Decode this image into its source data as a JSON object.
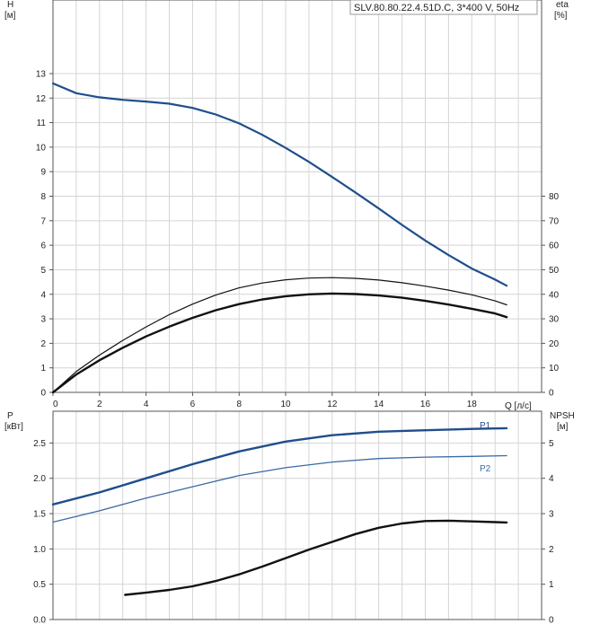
{
  "pump_label": "SLV.80.80.22.4.51D.C, 3*400 V, 50Hz",
  "colors": {
    "blue": "#1f4e8c",
    "blue_light": "#3a6aa5",
    "black": "#111111",
    "grid": "#d4d4d4"
  },
  "chart_data": [
    {
      "type": "line",
      "panel": "head-efficiency",
      "x_ticks": [
        "0",
        "2",
        "4",
        "6",
        "8",
        "10",
        "12",
        "14",
        "16",
        "18"
      ],
      "xlabel": "Q [л/с]",
      "xlim": [
        0,
        21
      ],
      "y_left": {
        "label_top": "H",
        "label_unit": "[м]",
        "ticks": [
          "0",
          "1",
          "2",
          "3",
          "4",
          "5",
          "6",
          "7",
          "8",
          "9",
          "10",
          "11",
          "12",
          "13"
        ],
        "lim": [
          0,
          16
        ]
      },
      "y_right": {
        "label_top": "eta",
        "label_unit": "[%]",
        "ticks": [
          "0",
          "10",
          "20",
          "30",
          "40",
          "50",
          "60",
          "70",
          "80"
        ],
        "lim": [
          0,
          160
        ]
      },
      "grid": true,
      "series": [
        {
          "axis": "left",
          "color": "#1f4e8c",
          "width": 2.2,
          "x": [
            0,
            1,
            2,
            3,
            4,
            5,
            6,
            7,
            8,
            9,
            10,
            11,
            12,
            13,
            14,
            15,
            16,
            17,
            18,
            19,
            19.5
          ],
          "y": [
            12.6,
            12.2,
            12.03,
            11.93,
            11.86,
            11.77,
            11.6,
            11.33,
            10.97,
            10.5,
            9.97,
            9.4,
            8.78,
            8.15,
            7.5,
            6.83,
            6.19,
            5.6,
            5.05,
            4.6,
            4.35
          ]
        },
        {
          "axis": "right",
          "color": "#111111",
          "width": 1.2,
          "x": [
            0,
            1,
            2,
            3,
            4,
            5,
            6,
            7,
            8,
            9,
            10,
            11,
            12,
            13,
            14,
            15,
            16,
            17,
            18,
            19,
            19.5
          ],
          "y": [
            0,
            8.5,
            15.2,
            21.2,
            26.7,
            31.7,
            36,
            39.7,
            42.6,
            44.6,
            45.9,
            46.6,
            46.8,
            46.5,
            45.8,
            44.7,
            43.3,
            41.7,
            39.8,
            37.3,
            35.7
          ]
        },
        {
          "axis": "right",
          "color": "#111111",
          "width": 2.4,
          "x": [
            0,
            1,
            2,
            3,
            4,
            5,
            6,
            7,
            8,
            9,
            10,
            11,
            12,
            13,
            14,
            15,
            16,
            17,
            18,
            19,
            19.5
          ],
          "y": [
            0,
            7.3,
            13.1,
            18.2,
            22.8,
            26.8,
            30.4,
            33.5,
            36,
            37.9,
            39.2,
            40,
            40.3,
            40.1,
            39.5,
            38.6,
            37.3,
            35.8,
            34.1,
            32.2,
            30.7
          ]
        }
      ]
    },
    {
      "type": "line",
      "panel": "power-npsh",
      "xlim": [
        0,
        21
      ],
      "y_left": {
        "label_top": "P",
        "label_unit": "[кВт]",
        "ticks": [
          "0.0",
          "0.5",
          "1.0",
          "1.5",
          "2.0",
          "2.5"
        ],
        "values": [
          0,
          0.5,
          1.0,
          1.5,
          2.0,
          2.5
        ],
        "lim": [
          0,
          2.95
        ]
      },
      "y_right": {
        "label_top": "NPSH",
        "label_unit": "[м]",
        "ticks": [
          "0",
          "1",
          "2",
          "3",
          "4",
          "5"
        ],
        "values": [
          0,
          1,
          2,
          3,
          4,
          5
        ],
        "lim": [
          0,
          5.9
        ]
      },
      "grid": true,
      "series": [
        {
          "name": "P1",
          "axis": "left",
          "color": "#1f4e8c",
          "width": 2.4,
          "x": [
            0,
            2,
            4,
            6,
            8,
            10,
            12,
            14,
            16,
            18,
            19.5
          ],
          "y": [
            1.63,
            1.8,
            2.0,
            2.2,
            2.38,
            2.52,
            2.61,
            2.66,
            2.68,
            2.7,
            2.71
          ]
        },
        {
          "name": "P2",
          "axis": "left",
          "color": "#3a6aa5",
          "width": 1.3,
          "x": [
            0,
            2,
            4,
            6,
            8,
            10,
            12,
            14,
            16,
            18,
            19.5
          ],
          "y": [
            1.38,
            1.54,
            1.72,
            1.88,
            2.04,
            2.15,
            2.23,
            2.28,
            2.3,
            2.31,
            2.32
          ]
        },
        {
          "axis": "right",
          "color": "#111111",
          "width": 2.4,
          "x": [
            3.1,
            4,
            5,
            6,
            7,
            8,
            9,
            10,
            11,
            12,
            13,
            14,
            15,
            16,
            17,
            18,
            19,
            19.5
          ],
          "y": [
            0.7,
            0.76,
            0.84,
            0.94,
            1.09,
            1.28,
            1.5,
            1.74,
            1.98,
            2.2,
            2.42,
            2.6,
            2.72,
            2.79,
            2.8,
            2.78,
            2.76,
            2.75
          ]
        }
      ]
    }
  ]
}
